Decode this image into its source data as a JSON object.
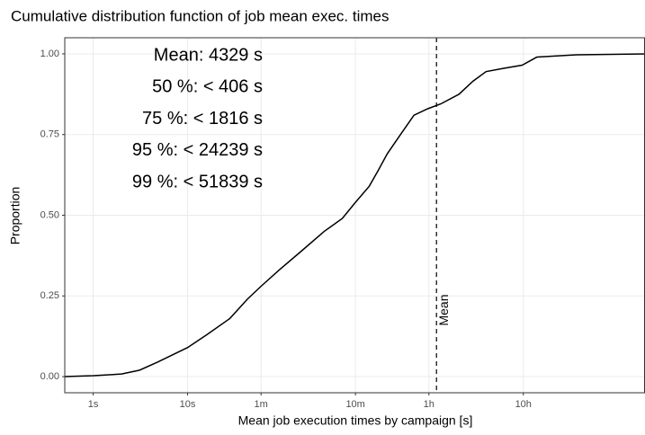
{
  "chart_data": {
    "type": "line",
    "title": "Cumulative distribution function of job mean exec. times",
    "xlabel": "Mean job execution times by campaign [s]",
    "ylabel": "Proportion",
    "xscale": "log",
    "grid": true,
    "color": "#000000",
    "xlim": [
      0.5,
      700000
    ],
    "ylim": [
      -0.05,
      1.05
    ],
    "xticks": [
      {
        "value": 1,
        "label": "1s"
      },
      {
        "value": 10,
        "label": "10s"
      },
      {
        "value": 60,
        "label": "1m"
      },
      {
        "value": 600,
        "label": "10m"
      },
      {
        "value": 3600,
        "label": "1h"
      },
      {
        "value": 36000,
        "label": "10h"
      }
    ],
    "yticks": [
      {
        "value": 0,
        "label": "0.00"
      },
      {
        "value": 0.25,
        "label": "0.25"
      },
      {
        "value": 0.5,
        "label": "0.50"
      },
      {
        "value": 0.75,
        "label": "0.75"
      },
      {
        "value": 1,
        "label": "1.00"
      }
    ],
    "x": [
      0.5,
      1,
      2,
      3.1,
      4.8,
      10,
      16,
      28,
      43,
      60,
      93,
      162,
      280,
      435,
      600,
      840,
      1050,
      1300,
      1800,
      2500,
      3500,
      4800,
      7500,
      10500,
      14500,
      22000,
      35000,
      50000,
      130000,
      700000
    ],
    "values": [
      0,
      0.003,
      0.008,
      0.02,
      0.045,
      0.09,
      0.13,
      0.18,
      0.24,
      0.28,
      0.33,
      0.39,
      0.45,
      0.49,
      0.54,
      0.59,
      0.64,
      0.69,
      0.75,
      0.81,
      0.83,
      0.845,
      0.875,
      0.915,
      0.945,
      0.955,
      0.965,
      0.99,
      0.997,
      1.0
    ],
    "mean_line": {
      "value": 4329,
      "label": "Mean"
    },
    "annotations": [
      "Mean: 4329 s",
      "50 %: < 406 s",
      "75 %: < 1816 s",
      "95 %: < 24239 s",
      "99 %: < 51839 s"
    ]
  }
}
